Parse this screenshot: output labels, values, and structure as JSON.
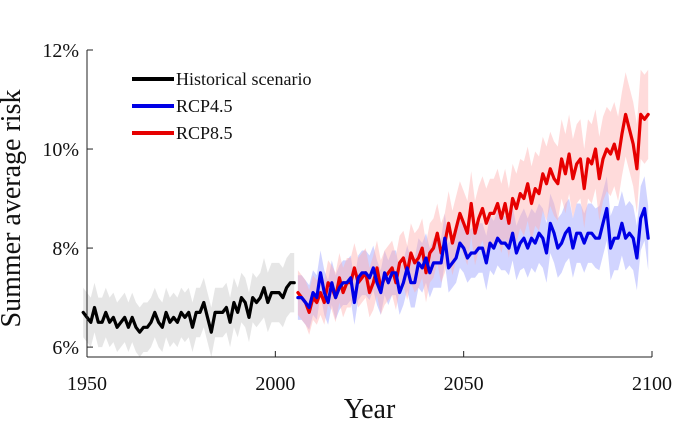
{
  "chart_data": {
    "type": "line",
    "title": "",
    "xlabel": "Year",
    "ylabel": "Summer average risk",
    "xlim": [
      1950,
      2100
    ],
    "ylim": [
      5.8,
      12
    ],
    "xticks": [
      1950,
      2000,
      2050,
      2100
    ],
    "xtick_labels": [
      "1950",
      "2000",
      "2050",
      "2100"
    ],
    "yticks": [
      6,
      8,
      10,
      12
    ],
    "ytick_labels": [
      "6%",
      "8%",
      "10%",
      "12%"
    ],
    "grid": false,
    "legend_position": "top-left",
    "series": [
      {
        "name": "Historical scenario",
        "color": "#000000",
        "band_color": "#c8c8c8",
        "x": [
          1949,
          1950,
          1951,
          1952,
          1953,
          1954,
          1955,
          1956,
          1957,
          1958,
          1959,
          1960,
          1961,
          1962,
          1963,
          1964,
          1965,
          1966,
          1967,
          1968,
          1969,
          1970,
          1971,
          1972,
          1973,
          1974,
          1975,
          1976,
          1977,
          1978,
          1979,
          1980,
          1981,
          1982,
          1983,
          1984,
          1985,
          1986,
          1987,
          1988,
          1989,
          1990,
          1991,
          1992,
          1993,
          1994,
          1995,
          1996,
          1997,
          1998,
          1999,
          2000,
          2001,
          2002,
          2003,
          2004,
          2005
        ],
        "y": [
          6.7,
          6.6,
          6.5,
          6.8,
          6.5,
          6.5,
          6.7,
          6.5,
          6.6,
          6.4,
          6.5,
          6.6,
          6.4,
          6.6,
          6.4,
          6.3,
          6.4,
          6.4,
          6.5,
          6.7,
          6.5,
          6.4,
          6.7,
          6.5,
          6.6,
          6.5,
          6.7,
          6.6,
          6.7,
          6.4,
          6.7,
          6.7,
          6.9,
          6.6,
          6.3,
          6.7,
          6.7,
          6.7,
          6.8,
          6.5,
          6.9,
          6.7,
          7.0,
          6.9,
          6.6,
          7.0,
          6.9,
          7.0,
          7.2,
          6.9,
          7.1,
          7.1,
          7.1,
          7.0,
          7.2,
          7.3,
          7.3
        ],
        "band": [
          0.5,
          0.5,
          0.5,
          0.5,
          0.5,
          0.5,
          0.5,
          0.5,
          0.5,
          0.5,
          0.5,
          0.5,
          0.5,
          0.5,
          0.5,
          0.5,
          0.5,
          0.5,
          0.5,
          0.5,
          0.5,
          0.5,
          0.5,
          0.5,
          0.5,
          0.5,
          0.5,
          0.5,
          0.5,
          0.5,
          0.5,
          0.5,
          0.5,
          0.5,
          0.5,
          0.5,
          0.5,
          0.5,
          0.5,
          0.5,
          0.5,
          0.5,
          0.5,
          0.5,
          0.5,
          0.5,
          0.5,
          0.5,
          0.6,
          0.6,
          0.6,
          0.6,
          0.6,
          0.6,
          0.6,
          0.6,
          0.6
        ]
      },
      {
        "name": "RCP4.5",
        "color": "#0000e6",
        "band_color": "#9aa0ff",
        "x": [
          2006,
          2007,
          2008,
          2009,
          2010,
          2011,
          2012,
          2013,
          2014,
          2015,
          2016,
          2017,
          2018,
          2019,
          2020,
          2021,
          2022,
          2023,
          2024,
          2025,
          2026,
          2027,
          2028,
          2029,
          2030,
          2031,
          2032,
          2033,
          2034,
          2035,
          2036,
          2037,
          2038,
          2039,
          2040,
          2041,
          2042,
          2043,
          2044,
          2045,
          2046,
          2047,
          2048,
          2049,
          2050,
          2051,
          2052,
          2053,
          2054,
          2055,
          2056,
          2057,
          2058,
          2059,
          2060,
          2061,
          2062,
          2063,
          2064,
          2065,
          2066,
          2067,
          2068,
          2069,
          2070,
          2071,
          2072,
          2073,
          2074,
          2075,
          2076,
          2077,
          2078,
          2079,
          2080,
          2081,
          2082,
          2083,
          2084,
          2085,
          2086,
          2087,
          2088,
          2089,
          2090,
          2091,
          2092,
          2093,
          2094,
          2095,
          2096,
          2097,
          2098,
          2099
        ],
        "y": [
          7.0,
          7.0,
          6.9,
          6.8,
          7.1,
          7.0,
          7.5,
          7.1,
          6.9,
          7.3,
          7.0,
          7.2,
          7.3,
          7.3,
          7.4,
          6.9,
          7.4,
          7.5,
          7.5,
          7.4,
          7.6,
          7.3,
          7.1,
          7.5,
          7.3,
          7.5,
          7.5,
          7.1,
          7.3,
          7.6,
          7.3,
          7.3,
          7.7,
          7.6,
          7.8,
          7.5,
          7.7,
          7.7,
          7.7,
          8.2,
          7.6,
          7.7,
          7.8,
          8.1,
          8.0,
          7.8,
          7.9,
          7.9,
          8.0,
          8.0,
          7.7,
          8.1,
          8.0,
          8.2,
          8.1,
          8.1,
          8.0,
          8.3,
          7.9,
          8.1,
          8.2,
          8.0,
          8.2,
          8.1,
          8.3,
          8.2,
          7.9,
          8.5,
          8.3,
          8.0,
          8.1,
          8.3,
          8.4,
          8.0,
          8.3,
          8.3,
          8.1,
          8.3,
          8.3,
          8.2,
          8.2,
          8.5,
          8.8,
          8.0,
          8.2,
          8.2,
          8.5,
          8.2,
          8.3,
          8.2,
          7.8,
          8.6,
          8.8,
          8.2
        ],
        "band": [
          0.45,
          0.45,
          0.45,
          0.45,
          0.45,
          0.45,
          0.45,
          0.45,
          0.45,
          0.45,
          0.45,
          0.45,
          0.45,
          0.45,
          0.45,
          0.45,
          0.45,
          0.45,
          0.45,
          0.45,
          0.45,
          0.45,
          0.45,
          0.45,
          0.45,
          0.45,
          0.45,
          0.45,
          0.45,
          0.45,
          0.5,
          0.5,
          0.5,
          0.5,
          0.5,
          0.5,
          0.5,
          0.5,
          0.5,
          0.5,
          0.5,
          0.5,
          0.5,
          0.5,
          0.5,
          0.5,
          0.5,
          0.5,
          0.5,
          0.5,
          0.55,
          0.55,
          0.55,
          0.55,
          0.55,
          0.55,
          0.55,
          0.55,
          0.55,
          0.55,
          0.6,
          0.6,
          0.6,
          0.6,
          0.6,
          0.6,
          0.6,
          0.6,
          0.6,
          0.6,
          0.6,
          0.6,
          0.6,
          0.6,
          0.6,
          0.6,
          0.6,
          0.6,
          0.6,
          0.6,
          0.65,
          0.65,
          0.65,
          0.65,
          0.65,
          0.65,
          0.65,
          0.65,
          0.65,
          0.65,
          0.65,
          0.65,
          0.65,
          0.65
        ]
      },
      {
        "name": "RCP8.5",
        "color": "#e60000",
        "band_color": "#ffb0b0",
        "x": [
          2006,
          2007,
          2008,
          2009,
          2010,
          2011,
          2012,
          2013,
          2014,
          2015,
          2016,
          2017,
          2018,
          2019,
          2020,
          2021,
          2022,
          2023,
          2024,
          2025,
          2026,
          2027,
          2028,
          2029,
          2030,
          2031,
          2032,
          2033,
          2034,
          2035,
          2036,
          2037,
          2038,
          2039,
          2040,
          2041,
          2042,
          2043,
          2044,
          2045,
          2046,
          2047,
          2048,
          2049,
          2050,
          2051,
          2052,
          2053,
          2054,
          2055,
          2056,
          2057,
          2058,
          2059,
          2060,
          2061,
          2062,
          2063,
          2064,
          2065,
          2066,
          2067,
          2068,
          2069,
          2070,
          2071,
          2072,
          2073,
          2074,
          2075,
          2076,
          2077,
          2078,
          2079,
          2080,
          2081,
          2082,
          2083,
          2084,
          2085,
          2086,
          2087,
          2088,
          2089,
          2090,
          2091,
          2092,
          2093,
          2094,
          2095,
          2096,
          2097,
          2098,
          2099
        ],
        "y": [
          7.1,
          7.0,
          6.9,
          6.7,
          7.0,
          6.9,
          7.1,
          6.9,
          7.3,
          7.2,
          7.0,
          7.4,
          7.1,
          7.3,
          7.3,
          7.6,
          7.3,
          7.4,
          7.5,
          7.1,
          7.3,
          7.6,
          7.2,
          7.4,
          7.5,
          7.6,
          7.3,
          7.7,
          7.8,
          7.5,
          7.9,
          7.7,
          7.8,
          8.0,
          7.5,
          7.9,
          8.0,
          8.3,
          7.9,
          8.1,
          8.5,
          8.1,
          8.4,
          8.7,
          8.5,
          8.3,
          8.9,
          8.3,
          8.6,
          8.8,
          8.5,
          8.7,
          8.7,
          8.9,
          8.6,
          8.9,
          8.5,
          9.0,
          8.8,
          9.1,
          9.0,
          9.3,
          8.9,
          9.2,
          9.1,
          9.5,
          9.3,
          9.6,
          9.4,
          9.3,
          9.8,
          9.5,
          9.9,
          9.4,
          9.7,
          9.8,
          9.2,
          9.8,
          9.7,
          10.0,
          9.4,
          9.8,
          10.0,
          9.9,
          10.1,
          9.8,
          10.3,
          10.7,
          10.4,
          10.1,
          9.6,
          10.7,
          10.6,
          10.7
        ],
        "band": [
          0.45,
          0.45,
          0.45,
          0.45,
          0.45,
          0.45,
          0.45,
          0.45,
          0.45,
          0.45,
          0.5,
          0.5,
          0.5,
          0.5,
          0.5,
          0.5,
          0.5,
          0.5,
          0.5,
          0.5,
          0.55,
          0.55,
          0.55,
          0.55,
          0.55,
          0.55,
          0.55,
          0.55,
          0.55,
          0.55,
          0.6,
          0.6,
          0.6,
          0.6,
          0.6,
          0.6,
          0.6,
          0.6,
          0.6,
          0.6,
          0.65,
          0.65,
          0.65,
          0.65,
          0.65,
          0.65,
          0.65,
          0.65,
          0.65,
          0.65,
          0.7,
          0.7,
          0.7,
          0.7,
          0.7,
          0.7,
          0.7,
          0.7,
          0.7,
          0.7,
          0.75,
          0.75,
          0.75,
          0.75,
          0.75,
          0.75,
          0.75,
          0.75,
          0.75,
          0.75,
          0.8,
          0.8,
          0.8,
          0.8,
          0.8,
          0.8,
          0.8,
          0.8,
          0.8,
          0.8,
          0.85,
          0.85,
          0.85,
          0.85,
          0.85,
          0.85,
          0.85,
          0.85,
          0.85,
          0.85,
          0.9,
          0.9,
          0.9,
          0.9
        ]
      }
    ]
  }
}
